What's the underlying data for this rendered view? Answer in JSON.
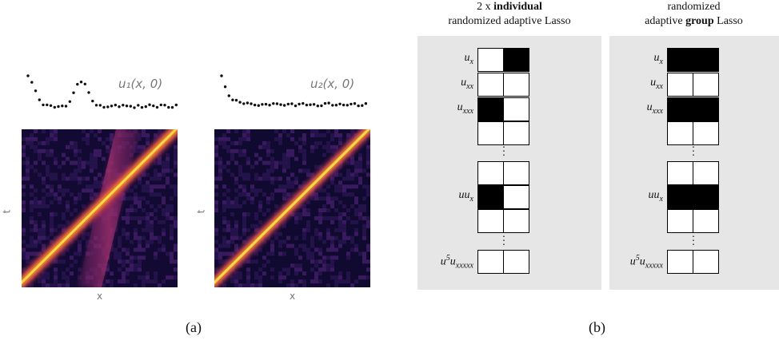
{
  "figure_a": {
    "caption": "(a)",
    "left_plot": {
      "initial_label": "u₁(x, 0)",
      "x_label": "x",
      "y_label": "t"
    },
    "right_plot": {
      "initial_label": "u₂(x, 0)",
      "x_label": "x",
      "y_label": "t"
    }
  },
  "figure_b": {
    "caption": "(b)",
    "left_panel": {
      "header_line1_prefix": "2 x ",
      "header_line1_bold": "individual",
      "header_line2": "randomized adaptive Lasso",
      "rows": [
        {
          "term": "u_x",
          "cells": [
            false,
            true
          ]
        },
        {
          "term": "u_xx",
          "cells": [
            false,
            false
          ]
        },
        {
          "term": "u_xxx",
          "cells": [
            true,
            false
          ]
        },
        {
          "term": "",
          "cells": [
            false,
            false
          ]
        },
        {
          "term": "",
          "cells": [
            false,
            false
          ]
        },
        {
          "term": "uu_x",
          "cells": [
            true,
            false
          ]
        },
        {
          "term": "",
          "cells": [
            false,
            false
          ]
        },
        {
          "term": "u^5u_xxxxx",
          "cells": [
            false,
            false
          ]
        }
      ]
    },
    "right_panel": {
      "header_line1": "randomized",
      "header_line2_prefix": "adaptive ",
      "header_line2_bold": "group",
      "header_line2_suffix": " Lasso",
      "rows": [
        {
          "term": "u_x",
          "cells": [
            true,
            true
          ]
        },
        {
          "term": "u_xx",
          "cells": [
            false,
            false
          ]
        },
        {
          "term": "u_xxx",
          "cells": [
            true,
            true
          ]
        },
        {
          "term": "",
          "cells": [
            false,
            false
          ]
        },
        {
          "term": "",
          "cells": [
            false,
            false
          ]
        },
        {
          "term": "uu_x",
          "cells": [
            true,
            true
          ]
        },
        {
          "term": "",
          "cells": [
            false,
            false
          ]
        },
        {
          "term": "u^5u_xxxxx",
          "cells": [
            false,
            false
          ]
        }
      ]
    }
  }
}
